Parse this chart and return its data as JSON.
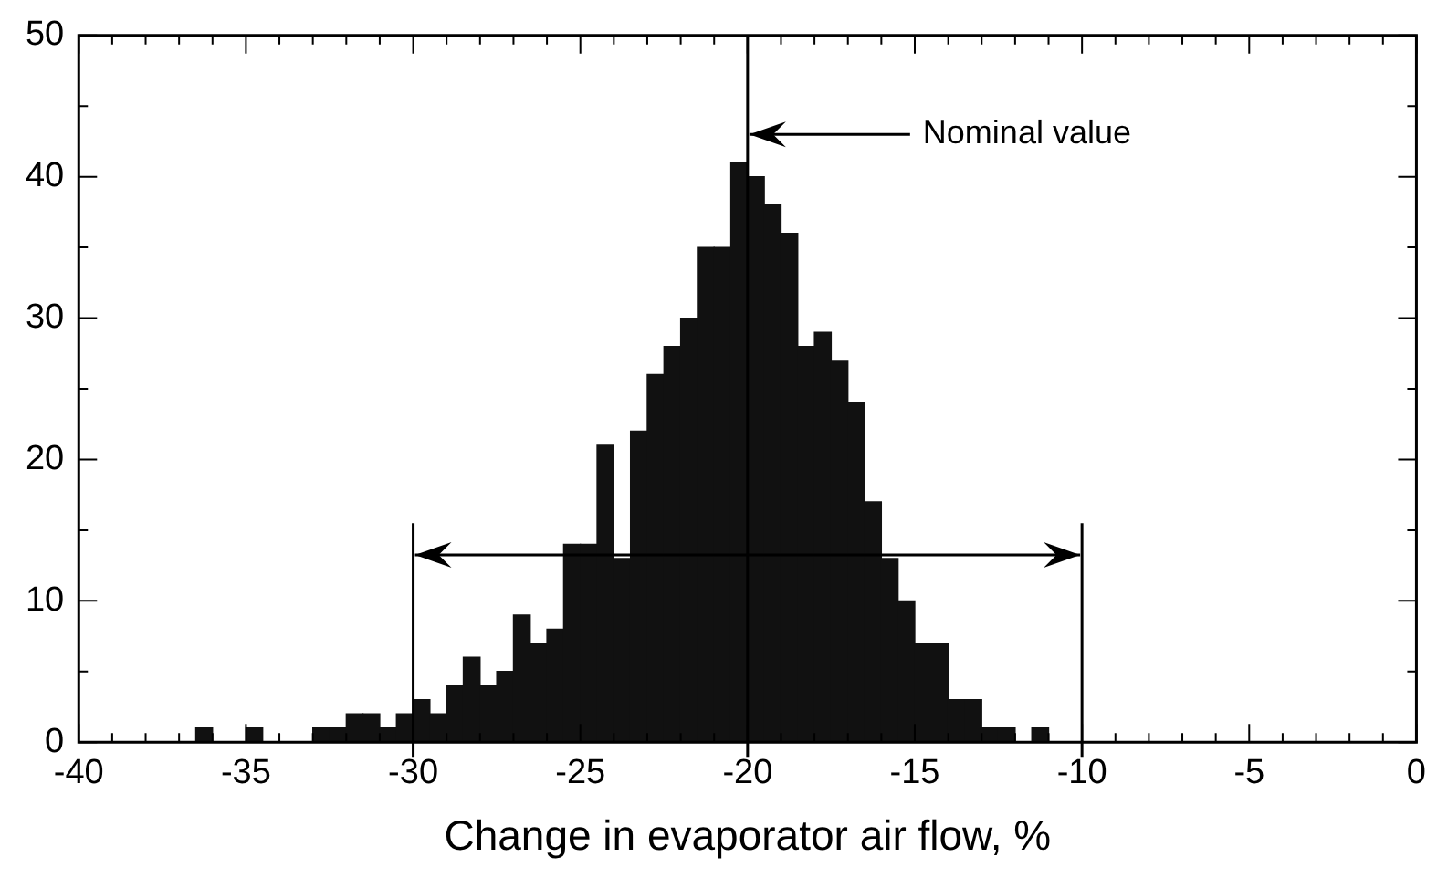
{
  "chart_data": {
    "type": "histogram",
    "bins": [
      -36.5,
      -36,
      -35.5,
      -35,
      -34.5,
      -34,
      -33.5,
      -33,
      -32.5,
      -32,
      -31.5,
      -31,
      -30.5,
      -30,
      -29.5,
      -29,
      -28.5,
      -28,
      -27.5,
      -27,
      -26.5,
      -26,
      -25.5,
      -25,
      -24.5,
      -24,
      -23.5,
      -23,
      -22.5,
      -22,
      -21.5,
      -21,
      -20.5,
      -20,
      -19.5,
      -19,
      -18.5,
      -18,
      -17.5,
      -17,
      -16.5,
      -16,
      -15.5,
      -15,
      -14.5,
      -14,
      -13.5,
      -13,
      -12.5,
      -12,
      -11.5,
      -11
    ],
    "values": [
      1,
      0,
      0,
      1,
      0,
      0,
      0,
      1,
      1,
      2,
      2,
      1,
      2,
      3,
      2,
      4,
      6,
      4,
      5,
      9,
      7,
      8,
      14,
      14,
      21,
      13,
      22,
      26,
      28,
      30,
      35,
      35,
      41,
      40,
      38,
      36,
      28,
      29,
      27,
      24,
      17,
      13,
      10,
      7,
      7,
      3,
      3,
      1,
      1,
      0,
      1
    ],
    "color": "#111111",
    "xlabel": "Change in evaporator air flow, %",
    "xlim": [
      -40,
      0
    ],
    "xticks": [
      -40,
      -35,
      -30,
      -25,
      -20,
      -15,
      -10,
      -5,
      0
    ],
    "ylim": [
      0,
      50
    ],
    "yticks": [
      0,
      10,
      20,
      30,
      40,
      50
    ],
    "ref_lines": [
      {
        "axis": "x",
        "value": -30
      },
      {
        "axis": "x",
        "value": -10
      },
      {
        "axis": "x",
        "value": -20
      }
    ],
    "annotations": [
      {
        "text": "Nominal value",
        "x": -20,
        "y": 43
      }
    ],
    "grid": false,
    "legend": false
  }
}
